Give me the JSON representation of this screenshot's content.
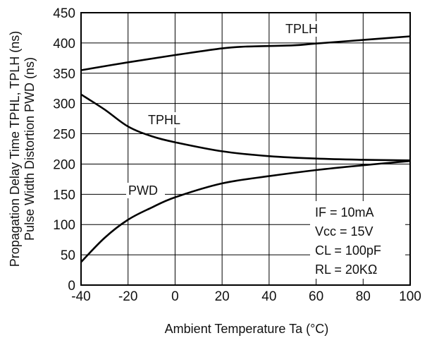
{
  "chart_data": {
    "type": "line",
    "xlabel": "Ambient Temperature Ta (°C)",
    "ylabel_lines": [
      "Propagation Delay Time TPHL, TPLH (ns)",
      "Pulse Width Distortion PWD (ns)"
    ],
    "xlim": [
      -40,
      100
    ],
    "ylim": [
      0,
      450
    ],
    "xticks": [
      -40,
      -20,
      0,
      20,
      40,
      60,
      80,
      100
    ],
    "yticks": [
      0,
      50,
      100,
      150,
      200,
      250,
      300,
      350,
      400,
      450
    ],
    "grid": true,
    "series": [
      {
        "name": "TPLH",
        "x": [
          -40,
          -20,
          0,
          20,
          30,
          50,
          60,
          80,
          100
        ],
        "y": [
          355,
          368,
          380,
          391,
          394,
          396,
          399,
          405,
          411
        ]
      },
      {
        "name": "TPHL",
        "x": [
          -40,
          -30,
          -20,
          -10,
          0,
          20,
          40,
          60,
          80,
          100
        ],
        "y": [
          315,
          290,
          262,
          246,
          236,
          221,
          213,
          209,
          207,
          206
        ]
      },
      {
        "name": "PWD",
        "x": [
          -40,
          -30,
          -20,
          -10,
          0,
          20,
          40,
          60,
          80,
          100
        ],
        "y": [
          38,
          78,
          108,
          128,
          145,
          168,
          180,
          190,
          198,
          205
        ]
      }
    ],
    "annotations": [
      "IF = 10mA",
      "Vcc = 15V",
      "CL = 100pF",
      "RL = 20KΩ"
    ]
  }
}
